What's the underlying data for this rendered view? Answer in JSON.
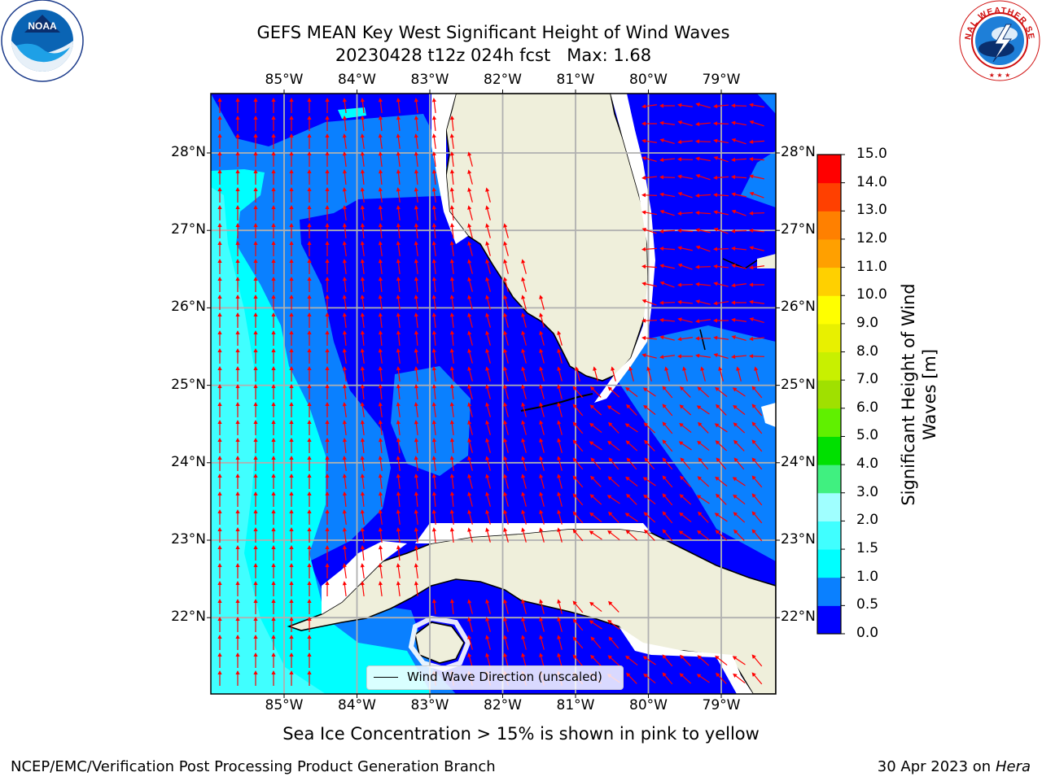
{
  "title": {
    "line1": "GEFS MEAN Key West Significant Height of Wind Waves",
    "line2": "20230428 t12z 024h fcst   Max: 1.68"
  },
  "logos": {
    "noaa": {
      "text": "NOAA",
      "ring_text": "NATIONAL OCEANIC AND ATMOSPHERIC ADMINISTRATION · U.S. DEPARTMENT OF COMMERCE"
    },
    "nws": {
      "ring_text": "NATIONAL WEATHER SERVICE"
    }
  },
  "map": {
    "lon_ticks": [
      "85°W",
      "84°W",
      "83°W",
      "82°W",
      "81°W",
      "80°W",
      "79°W"
    ],
    "lat_ticks": [
      "28°N",
      "27°N",
      "26°N",
      "25°N",
      "24°N",
      "23°N",
      "22°N"
    ],
    "ocean_colors": {
      "deep": "#0000ff",
      "mid": "#0a80ff",
      "light": "#00ffff",
      "lighter": "#40ffff"
    },
    "land_color": "#efefdb",
    "arrow_color": "#ff0000",
    "grid_color": "#b0b0b0"
  },
  "legend": {
    "label": "Wind Wave Direction (unscaled)"
  },
  "colorbar": {
    "label": "Significant Height of Wind Waves [m]",
    "label_line1": "Significant Height of Wind",
    "label_line2": "Waves [m]",
    "ticks": [
      "0.0",
      "0.5",
      "1.0",
      "1.5",
      "2.0",
      "3.0",
      "4.0",
      "5.0",
      "6.0",
      "7.0",
      "8.0",
      "9.0",
      "10.0",
      "11.0",
      "12.0",
      "13.0",
      "14.0",
      "15.0"
    ],
    "colors": [
      "#0000ff",
      "#0a80ff",
      "#00ffff",
      "#40ffff",
      "#a0ffff",
      "#40f080",
      "#00e000",
      "#60f000",
      "#a0e000",
      "#c8f000",
      "#e8f000",
      "#ffff00",
      "#ffd000",
      "#ffa000",
      "#ff8000",
      "#ff4000",
      "#ff0000"
    ]
  },
  "notes": {
    "sea_ice": "Sea Ice Concentration > 15% is shown in pink to yellow"
  },
  "footer": {
    "left": "NCEP/EMC/Verification Post Processing Product Generation Branch",
    "right_date": "30 Apr 2023 on ",
    "right_host": "Hera"
  }
}
